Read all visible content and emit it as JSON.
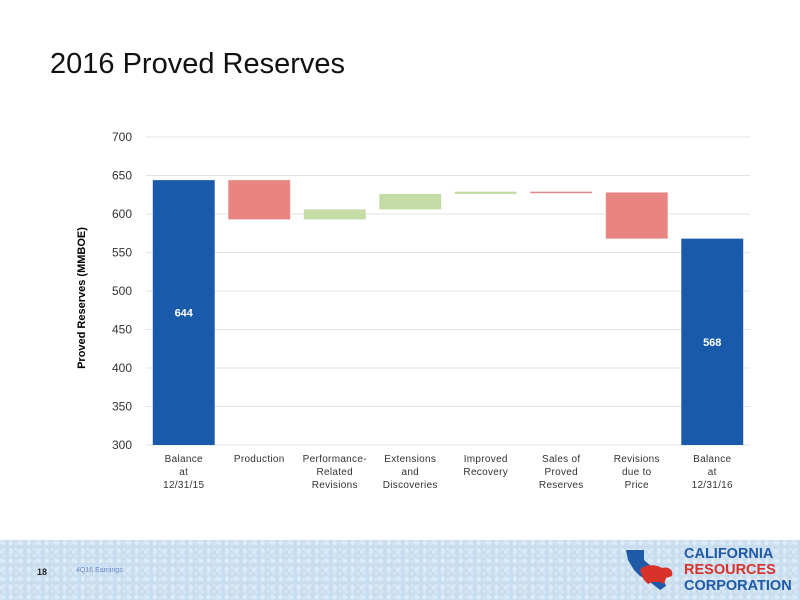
{
  "slide": {
    "title": "2016 Proved Reserves",
    "page_number": "18",
    "footnote": "4Q16 Earnings"
  },
  "logo": {
    "lines": [
      "CALIFORNIA",
      "RESOURCES",
      "CORPORATION"
    ],
    "icon": "california-map-bear-icon"
  },
  "colors": {
    "total": "#1a5aab",
    "decrease": "#e88582",
    "increase": "#c4dba6",
    "grid": "#e3e3e3",
    "logo_blue": "#1f5aa6",
    "logo_red": "#d9322b"
  },
  "chart_data": {
    "type": "waterfall",
    "title": "",
    "ylabel": "Proved Reserves (MMBOE)",
    "xlabel": "",
    "ylim": [
      300,
      700
    ],
    "yticks": [
      "300",
      "350",
      "400",
      "450",
      "500",
      "550",
      "600",
      "650",
      "700"
    ],
    "grid": true,
    "categories": [
      [
        "Balance",
        "at",
        "12/31/15"
      ],
      [
        "Production"
      ],
      [
        "Performance-",
        "Related",
        "Revisions"
      ],
      [
        "Extensions",
        "and",
        "Discoveries"
      ],
      [
        "Improved",
        "Recovery"
      ],
      [
        "Sales of",
        "Proved",
        "Reserves"
      ],
      [
        "Revisions",
        "due to",
        "Price"
      ],
      [
        "Balance",
        "at",
        "12/31/16"
      ]
    ],
    "bars": [
      {
        "kind": "total",
        "start": 300,
        "end": 644,
        "label": "644"
      },
      {
        "kind": "decrease",
        "start": 644,
        "end": 593
      },
      {
        "kind": "increase",
        "start": 593,
        "end": 606
      },
      {
        "kind": "increase",
        "start": 606,
        "end": 626
      },
      {
        "kind": "increase",
        "start": 626,
        "end": 629
      },
      {
        "kind": "decrease",
        "start": 629,
        "end": 628
      },
      {
        "kind": "decrease",
        "start": 628,
        "end": 568
      },
      {
        "kind": "total",
        "start": 300,
        "end": 568,
        "label": "568"
      }
    ]
  }
}
